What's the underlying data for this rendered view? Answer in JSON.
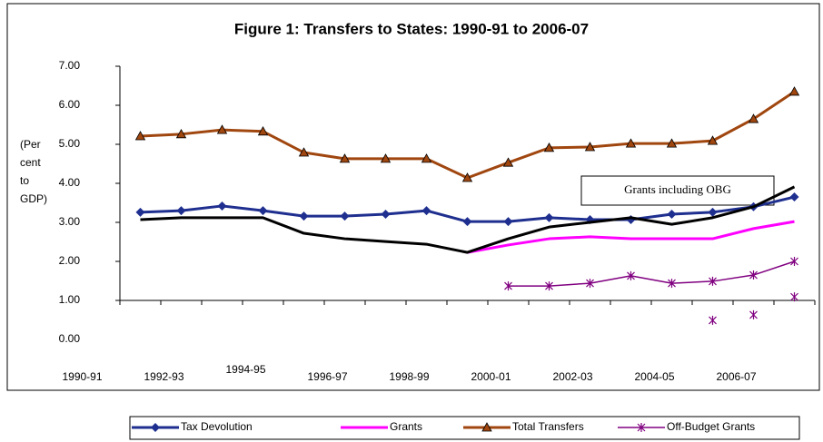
{
  "chart_data": {
    "type": "line",
    "title": "Figure 1: Transfers to States: 1990-91 to 2006-07",
    "y_label": "(Per cent to GDP)",
    "categories": [
      "1990-91",
      null,
      "1992-93",
      null,
      "1994-95",
      null,
      "1996-97",
      null,
      "1998-99",
      null,
      "2000-01",
      null,
      "2002-03",
      null,
      "2004-05",
      null,
      "2006-07"
    ],
    "ylim": [
      0,
      7
    ],
    "yticks": [
      {
        "value": 0,
        "label": "0.00"
      },
      {
        "value": 1,
        "label": "1.00"
      },
      {
        "value": 2,
        "label": "2.00"
      },
      {
        "value": 3,
        "label": "3.00"
      },
      {
        "value": 4,
        "label": "4.00"
      },
      {
        "value": 5,
        "label": "5.00"
      },
      {
        "value": 6,
        "label": "6.00"
      },
      {
        "value": 7,
        "label": "7.00"
      }
    ],
    "x_axis_crosses": 1,
    "series": [
      {
        "name": "Tax Devolution",
        "color": "#1f2f8f",
        "marker": "diamond",
        "line": true,
        "legend": true,
        "values": [
          3.26,
          3.3,
          3.42,
          3.3,
          3.16,
          3.16,
          3.21,
          3.3,
          3.02,
          3.02,
          3.12,
          3.07,
          3.07,
          3.21,
          3.26,
          3.4,
          3.65
        ]
      },
      {
        "name": "Grants",
        "color": "#ff00ff",
        "marker": "none",
        "line": true,
        "legend": true,
        "values": [
          null,
          null,
          null,
          null,
          null,
          null,
          null,
          null,
          2.23,
          2.42,
          2.58,
          2.63,
          2.58,
          2.58,
          2.58,
          2.84,
          3.02
        ]
      },
      {
        "name": "Total Transfers",
        "color": "#a0460f",
        "marker": "triangle",
        "line": true,
        "legend": true,
        "values": [
          5.21,
          5.26,
          5.37,
          5.33,
          4.79,
          4.63,
          4.63,
          4.63,
          4.14,
          4.53,
          4.91,
          4.93,
          5.02,
          5.02,
          5.09,
          5.65,
          6.35
        ]
      },
      {
        "name": "Off-Budget Grants",
        "color": "#800080",
        "marker": "star",
        "line": true,
        "legend": true,
        "values": [
          null,
          null,
          null,
          null,
          null,
          null,
          null,
          null,
          null,
          1.37,
          1.37,
          1.44,
          1.63,
          1.44,
          1.49,
          1.65,
          2.0
        ]
      },
      {
        "name": "Grants including OBG",
        "color": "#000000",
        "marker": "none",
        "line": true,
        "legend": false,
        "values": [
          3.07,
          3.12,
          3.12,
          3.12,
          2.72,
          2.58,
          2.51,
          2.44,
          2.23,
          2.58,
          2.88,
          3.0,
          3.12,
          2.95,
          3.12,
          3.4,
          3.91
        ]
      },
      {
        "color": "#800080",
        "marker": "star",
        "line": false,
        "legend": false,
        "values": [
          null,
          null,
          null,
          null,
          null,
          null,
          null,
          null,
          null,
          null,
          null,
          null,
          null,
          null,
          0.49,
          0.63,
          1.09
        ]
      }
    ]
  }
}
